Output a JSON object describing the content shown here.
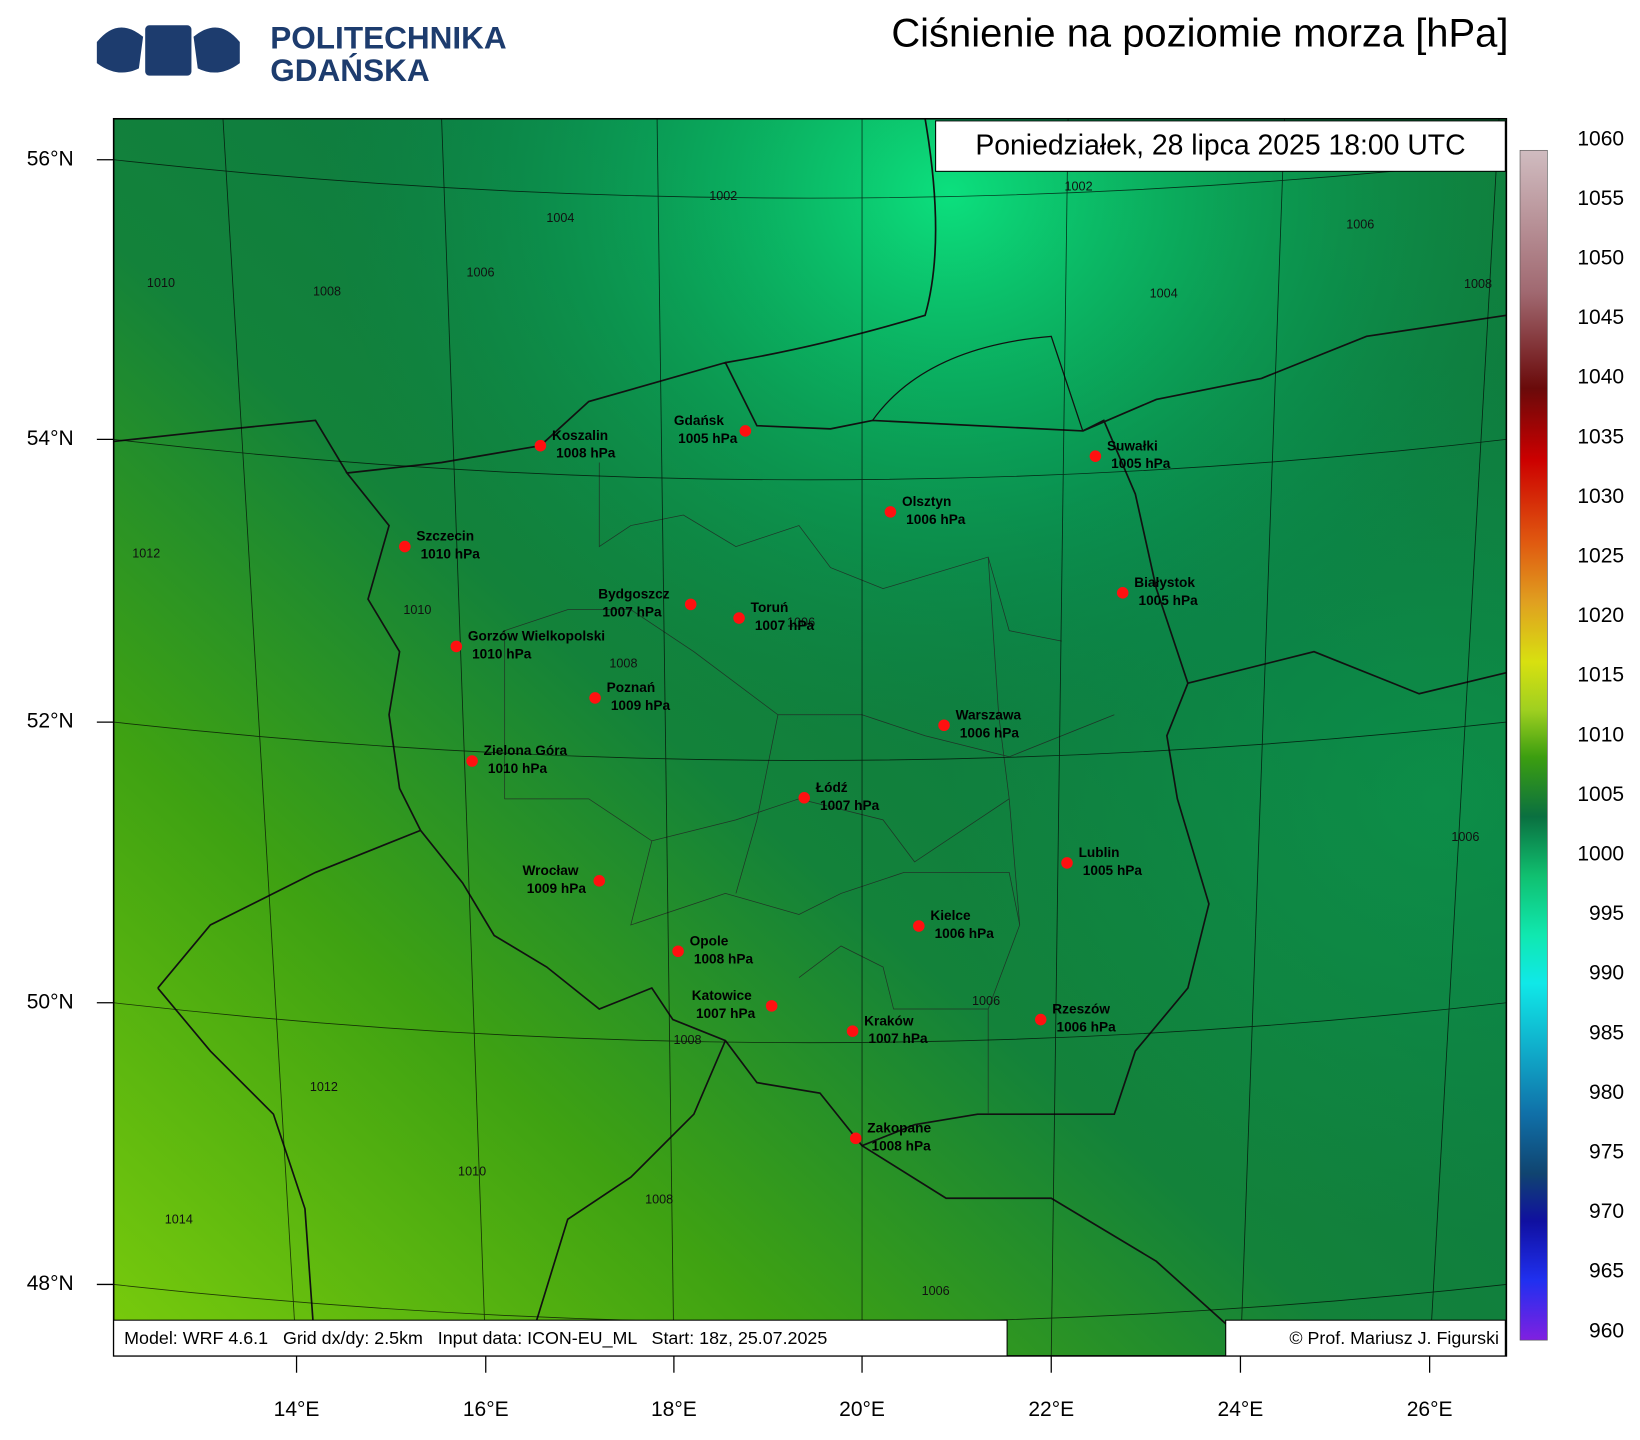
{
  "header": {
    "logo": [
      "POLITECHNIKA",
      "GDAŃSKA"
    ],
    "title": "Ciśnienie na poziomie morza [hPa]"
  },
  "map": {
    "valid_time": "Poniedziałek, 28 lipca 2025 18:00 UTC",
    "lat_labels": [
      "56°N",
      "54°N",
      "52°N",
      "50°N",
      "48°N"
    ],
    "lon_labels": [
      "14°E",
      "16°E",
      "18°E",
      "20°E",
      "22°E",
      "24°E",
      "26°E"
    ],
    "cities": [
      {
        "name": "Koszalin",
        "pressure": "1008 hPa"
      },
      {
        "name": "Gdańsk",
        "pressure": "1005 hPa"
      },
      {
        "name": "Suwałki",
        "pressure": "1005 hPa"
      },
      {
        "name": "Olsztyn",
        "pressure": "1006 hPa"
      },
      {
        "name": "Szczecin",
        "pressure": "1010 hPa"
      },
      {
        "name": "Białystok",
        "pressure": "1005 hPa"
      },
      {
        "name": "Bydgoszcz",
        "pressure": "1007 hPa"
      },
      {
        "name": "Toruń",
        "pressure": "1007 hPa"
      },
      {
        "name": "Gorzów Wielkopolski",
        "pressure": "1010 hPa"
      },
      {
        "name": "Poznań",
        "pressure": "1009 hPa"
      },
      {
        "name": "Warszawa",
        "pressure": "1006 hPa"
      },
      {
        "name": "Zielona Góra",
        "pressure": "1010 hPa"
      },
      {
        "name": "Łódź",
        "pressure": "1007 hPa"
      },
      {
        "name": "Lublin",
        "pressure": "1005 hPa"
      },
      {
        "name": "Wrocław",
        "pressure": "1009 hPa"
      },
      {
        "name": "Kielce",
        "pressure": "1006 hPa"
      },
      {
        "name": "Opole",
        "pressure": "1008 hPa"
      },
      {
        "name": "Katowice",
        "pressure": "1007 hPa"
      },
      {
        "name": "Rzeszów",
        "pressure": "1006 hPa"
      },
      {
        "name": "Kraków",
        "pressure": "1007 hPa"
      },
      {
        "name": "Zakopane",
        "pressure": "1008 hPa"
      }
    ],
    "contour_labels": [
      "1002",
      "1002",
      "1004",
      "1004",
      "1006",
      "1006",
      "1008",
      "1008",
      "1010",
      "1012",
      "1010",
      "1008",
      "1006",
      "1006",
      "1006",
      "1008",
      "1012",
      "1010",
      "1008",
      "1014",
      "1006"
    ],
    "footer": {
      "run_info": "Model: WRF 4.6.1   Grid dx/dy: 2.5km   Input data: ICON-EU_ML   Start: 18z, 25.07.2025",
      "copyright": "© Prof. Mariusz J. Figurski"
    }
  },
  "colorbar": {
    "ticks": [
      "1060",
      "1055",
      "1050",
      "1045",
      "1040",
      "1035",
      "1030",
      "1025",
      "1020",
      "1015",
      "1010",
      "1005",
      "1000",
      "995",
      "990",
      "985",
      "980",
      "975",
      "970",
      "965",
      "960"
    ]
  }
}
